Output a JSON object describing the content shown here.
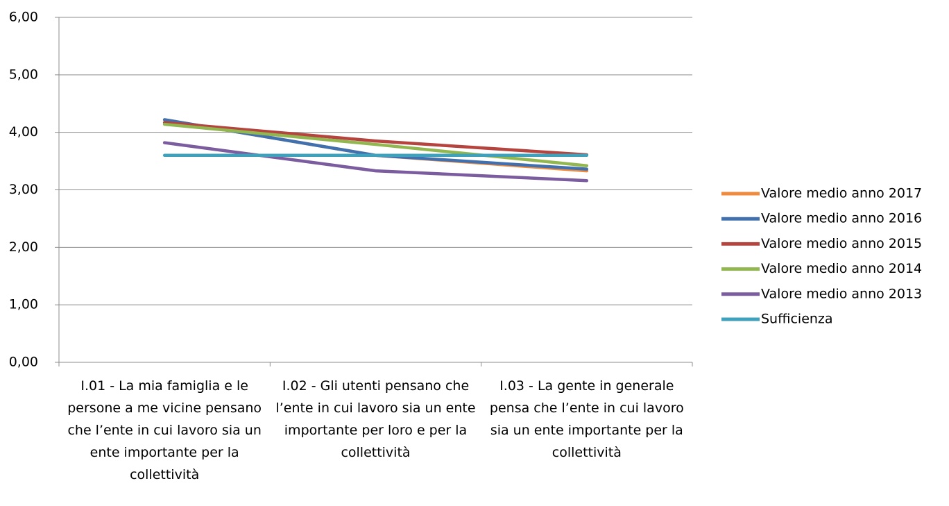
{
  "chart_data": {
    "type": "line",
    "categories": [
      "I.01 - La mia famiglia e le persone a me vicine pensano che l’ente in cui lavoro sia un ente importante per la collettività",
      "I.02 - Gli utenti pensano che l’ente in cui lavoro sia un ente importante per loro e per la collettività",
      "I.03 - La gente in generale pensa che l’ente in cui lavoro sia un ente importante per la collettività"
    ],
    "series": [
      {
        "name": "Valore medio anno 2017",
        "color": "#f08a3c",
        "values": [
          4.22,
          3.6,
          3.33
        ]
      },
      {
        "name": "Valore medio anno 2016",
        "color": "#4070ae",
        "values": [
          4.22,
          3.6,
          3.36
        ]
      },
      {
        "name": "Valore medio anno 2015",
        "color": "#b5443f",
        "values": [
          4.17,
          3.85,
          3.61
        ]
      },
      {
        "name": "Valore medio anno 2014",
        "color": "#92b650",
        "values": [
          4.14,
          3.79,
          3.42
        ]
      },
      {
        "name": "Valore medio anno 2013",
        "color": "#7b5c9f",
        "values": [
          3.82,
          3.33,
          3.16
        ]
      },
      {
        "name": "Sufficienza",
        "color": "#3ea2bd",
        "values": [
          3.6,
          3.6,
          3.6
        ]
      }
    ],
    "ylim": [
      0,
      6
    ],
    "yticks": [
      {
        "value": 0,
        "label": "0,00"
      },
      {
        "value": 1,
        "label": "1,00"
      },
      {
        "value": 2,
        "label": "2,00"
      },
      {
        "value": 3,
        "label": "3,00"
      },
      {
        "value": 4,
        "label": "4,00"
      },
      {
        "value": 5,
        "label": "5,00"
      },
      {
        "value": 6,
        "label": "6,00"
      }
    ],
    "grid": true,
    "legend": "right"
  }
}
